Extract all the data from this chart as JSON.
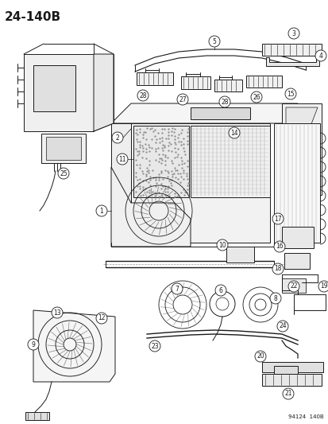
{
  "title": "24-140B",
  "diagram_code": "94124  140B",
  "bg_color": "#ffffff",
  "title_fontsize": 11,
  "fig_width": 4.14,
  "fig_height": 5.33,
  "dpi": 100,
  "line_color": "#1a1a1a",
  "gray_color": "#666666"
}
